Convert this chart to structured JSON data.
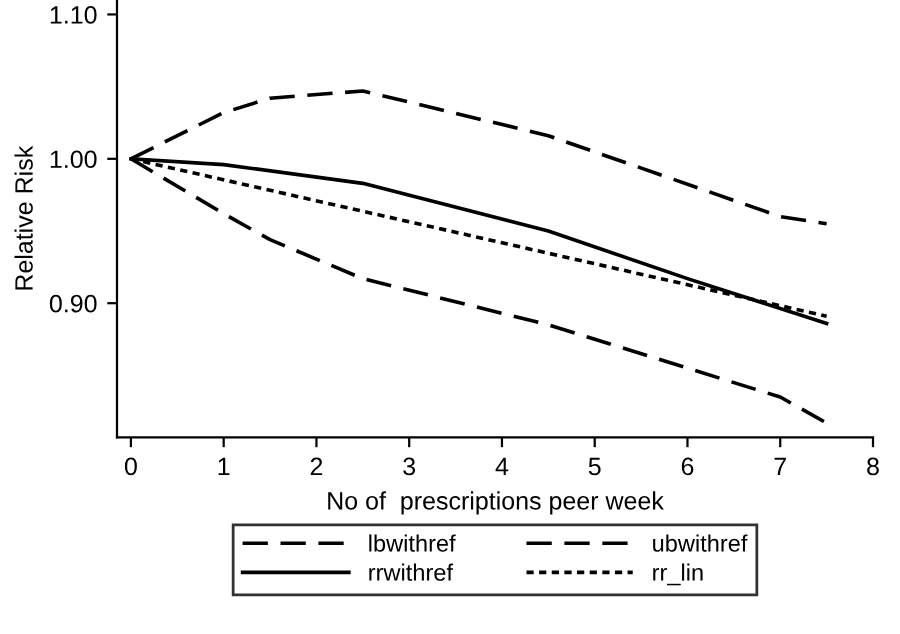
{
  "chart_data": {
    "type": "line",
    "xlabel": "No of  prescriptions peer week",
    "ylabel": "Relative Risk",
    "xlim": [
      -0.15,
      8
    ],
    "xticks": [
      0,
      1,
      2,
      3,
      4,
      5,
      6,
      7,
      8
    ],
    "ylim": [
      0.807,
      1.11
    ],
    "yticks": [
      {
        "value": 0.9,
        "label": "0.90"
      },
      {
        "value": 1.0,
        "label": "1.00"
      },
      {
        "value": 1.1,
        "label": "1.10"
      }
    ],
    "grid": false,
    "legend": "bottom",
    "marker": "none",
    "series": [
      {
        "name": "lbwithref",
        "color": "#000000",
        "line_style": "dashed",
        "x": [
          0,
          1,
          1.5,
          2.5,
          4.5,
          7,
          7.5
        ],
        "values": [
          1.0,
          0.962,
          0.944,
          0.917,
          0.885,
          0.835,
          0.817
        ]
      },
      {
        "name": "ubwithref",
        "color": "#000000",
        "line_style": "dashed",
        "x": [
          0,
          1,
          1.5,
          2.5,
          4.5,
          7,
          7.5
        ],
        "values": [
          1.0,
          1.032,
          1.042,
          1.047,
          1.016,
          0.96,
          0.955
        ]
      },
      {
        "name": "rrwithref",
        "color": "#000000",
        "line_style": "solid",
        "x": [
          0,
          1,
          2.5,
          4.5,
          6,
          7.5
        ],
        "values": [
          1.0,
          0.996,
          0.983,
          0.95,
          0.917,
          0.886
        ]
      },
      {
        "name": "rr_lin",
        "color": "#000000",
        "line_style": "dotted",
        "x": [
          0,
          7.5
        ],
        "values": [
          1.0,
          0.891
        ]
      }
    ]
  }
}
